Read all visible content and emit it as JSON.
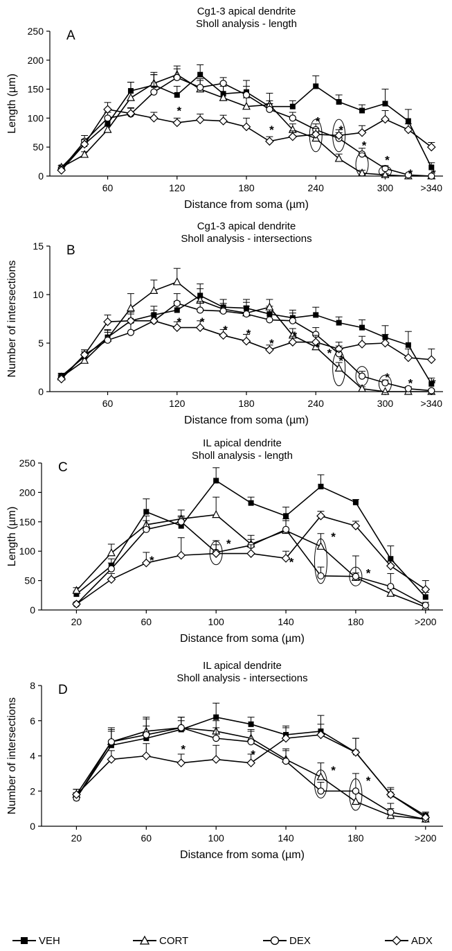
{
  "chart_data": [
    {
      "panel": "A",
      "type": "line",
      "title": "Cg1-3 apical dendrite",
      "subtitle": "Sholl analysis - length",
      "xlabel": "Distance from soma (µm)",
      "ylabel": "Length (µm)",
      "x": [
        20,
        40,
        60,
        80,
        100,
        120,
        140,
        160,
        180,
        200,
        220,
        240,
        260,
        280,
        300,
        320,
        340
      ],
      "x_ticks": [
        60,
        120,
        180,
        240,
        300,
        340
      ],
      "x_tick_labels": [
        "60",
        "120",
        "180",
        "240",
        "300",
        ">340"
      ],
      "xlim": [
        10,
        350
      ],
      "ylim": [
        0,
        250
      ],
      "y_ticks": [
        0,
        50,
        100,
        150,
        200,
        250
      ],
      "series": [
        {
          "name": "VEH",
          "values": [
            15,
            55,
            90,
            147,
            157,
            140,
            175,
            142,
            145,
            120,
            120,
            155,
            128,
            113,
            125,
            95,
            15
          ],
          "errors": [
            3,
            8,
            12,
            15,
            22,
            15,
            17,
            20,
            20,
            10,
            10,
            18,
            12,
            10,
            25,
            20,
            8
          ]
        },
        {
          "name": "CORT",
          "values": [
            15,
            37,
            80,
            135,
            160,
            175,
            150,
            135,
            120,
            123,
            80,
            65,
            30,
            5,
            2,
            0,
            0
          ],
          "errors": [
            3,
            5,
            8,
            27,
            15,
            15,
            15,
            20,
            15,
            20,
            10,
            10,
            8,
            5,
            2,
            0,
            0
          ]
        },
        {
          "name": "DEX",
          "values": [
            12,
            60,
            100,
            107,
            145,
            170,
            153,
            160,
            140,
            115,
            100,
            80,
            65,
            38,
            13,
            2,
            0
          ],
          "errors": [
            3,
            10,
            10,
            10,
            30,
            15,
            15,
            10,
            15,
            10,
            10,
            10,
            10,
            10,
            5,
            2,
            0
          ]
        },
        {
          "name": "ADX",
          "values": [
            10,
            55,
            115,
            108,
            100,
            92,
            97,
            95,
            85,
            60,
            68,
            72,
            70,
            75,
            98,
            80,
            50
          ],
          "errors": [
            3,
            8,
            12,
            10,
            10,
            8,
            10,
            10,
            15,
            8,
            10,
            10,
            10,
            12,
            15,
            10,
            8
          ]
        }
      ],
      "significance_marks": [
        {
          "x": 120,
          "y": 113
        },
        {
          "x": 200,
          "y": 80
        },
        {
          "x": 240,
          "y": 95
        },
        {
          "x": 260,
          "y": 80
        },
        {
          "x": 280,
          "y": 53
        },
        {
          "x": 300,
          "y": 28
        },
        {
          "x": 320,
          "y": 5
        },
        {
          "x": 340,
          "y": 5
        }
      ],
      "circled_points": [
        {
          "x": 240,
          "y": 70,
          "ry": 28
        },
        {
          "x": 260,
          "y": 70,
          "ry": 28
        },
        {
          "x": 280,
          "y": 20,
          "ry": 20
        },
        {
          "x": 300,
          "y": 8,
          "ry": 9
        }
      ]
    },
    {
      "panel": "B",
      "type": "line",
      "title": "Cg1-3 apical dendrite",
      "subtitle": "Sholl analysis - intersections",
      "xlabel": "Distance from soma (µm)",
      "ylabel": "Number of intersections",
      "x": [
        20,
        40,
        60,
        80,
        100,
        120,
        140,
        160,
        180,
        200,
        220,
        240,
        260,
        280,
        300,
        320,
        340
      ],
      "x_ticks": [
        60,
        120,
        180,
        240,
        300,
        340
      ],
      "x_tick_labels": [
        "60",
        "120",
        "180",
        "240",
        "300",
        ">340"
      ],
      "xlim": [
        10,
        350
      ],
      "ylim": [
        0,
        15
      ],
      "y_ticks": [
        0,
        5,
        10,
        15
      ],
      "series": [
        {
          "name": "VEH",
          "values": [
            1.6,
            3.6,
            5.6,
            7.3,
            7.9,
            8.4,
            9.9,
            8.7,
            8.6,
            8.0,
            7.6,
            7.9,
            7.1,
            6.6,
            5.6,
            4.8,
            0.8
          ],
          "errors": [
            0.3,
            0.5,
            0.8,
            0.9,
            0.9,
            0.9,
            1.2,
            0.8,
            0.9,
            0.8,
            0.8,
            0.8,
            0.6,
            0.8,
            1.2,
            1.4,
            0.6
          ]
        },
        {
          "name": "CORT",
          "values": [
            1.5,
            3.2,
            5.5,
            8.6,
            10.4,
            11.3,
            9.4,
            8.5,
            8.1,
            8.7,
            5.8,
            4.6,
            2.4,
            0.3,
            0.0,
            0.0,
            0.0
          ],
          "errors": [
            0.3,
            0.5,
            0.8,
            1.5,
            1.1,
            1.4,
            1.2,
            1.0,
            1.1,
            0.8,
            0.7,
            0.6,
            0.6,
            0.2,
            0,
            0,
            0
          ]
        },
        {
          "name": "DEX",
          "values": [
            1.4,
            3.8,
            5.3,
            6.1,
            7.3,
            9.1,
            8.4,
            8.3,
            8.0,
            7.4,
            7.3,
            5.9,
            3.9,
            1.6,
            0.9,
            0.3,
            0.1
          ],
          "errors": [
            0.3,
            0.5,
            0.8,
            1.0,
            1.1,
            1.0,
            0.9,
            0.8,
            0.8,
            0.7,
            0.8,
            0.7,
            0.8,
            0.5,
            0.3,
            0.2,
            0.1
          ]
        },
        {
          "name": "ADX",
          "values": [
            1.3,
            3.8,
            7.2,
            7.3,
            7.3,
            6.6,
            6.6,
            5.8,
            5.2,
            4.3,
            5.1,
            5.1,
            4.4,
            4.9,
            5.0,
            3.5,
            3.3
          ],
          "errors": [
            0.3,
            0.5,
            0.7,
            0.7,
            0.7,
            0.6,
            0.7,
            0.6,
            0.7,
            0.5,
            0.6,
            0.7,
            0.7,
            0.8,
            0.9,
            0.9,
            1.1
          ]
        }
      ],
      "significance_marks": [
        {
          "x": 120,
          "y": 7.2
        },
        {
          "x": 140,
          "y": 7.2
        },
        {
          "x": 160,
          "y": 6.4
        },
        {
          "x": 180,
          "y": 6.0
        },
        {
          "x": 200,
          "y": 5.0
        },
        {
          "x": 220,
          "y": 5.8
        },
        {
          "x": 240,
          "y": 4.6
        },
        {
          "x": 250,
          "y": 4.0
        },
        {
          "x": 260,
          "y": 3.2
        },
        {
          "x": 300,
          "y": 1.5
        },
        {
          "x": 320,
          "y": 0.9
        },
        {
          "x": 340,
          "y": 0.9
        }
      ],
      "circled_points": [
        {
          "x": 260,
          "y": 2.4,
          "ry": 1.8
        },
        {
          "x": 280,
          "y": 1.6,
          "ry": 1.0
        },
        {
          "x": 300,
          "y": 0.8,
          "ry": 0.9
        }
      ]
    },
    {
      "panel": "C",
      "type": "line",
      "title": "IL apical dendrite",
      "subtitle": "Sholl analysis - length",
      "xlabel": "Distance from soma (µm)",
      "ylabel": "Length (µm)",
      "x": [
        20,
        40,
        60,
        80,
        100,
        120,
        140,
        160,
        180,
        200,
        220
      ],
      "x_ticks": [
        20,
        60,
        100,
        140,
        180,
        220
      ],
      "x_tick_labels": [
        "20",
        "60",
        "100",
        "140",
        "180",
        ">200"
      ],
      "xlim": [
        0,
        230
      ],
      "ylim": [
        0,
        250
      ],
      "y_ticks": [
        0,
        50,
        100,
        150,
        200,
        250
      ],
      "series": [
        {
          "name": "VEH",
          "values": [
            27,
            75,
            167,
            143,
            220,
            182,
            160,
            210,
            183,
            87,
            22
          ],
          "errors": [
            5,
            12,
            22,
            15,
            22,
            10,
            15,
            20,
            5,
            22,
            8
          ]
        },
        {
          "name": "CORT",
          "values": [
            33,
            97,
            145,
            155,
            162,
            112,
            135,
            108,
            55,
            28,
            5
          ],
          "errors": [
            5,
            15,
            15,
            15,
            30,
            15,
            20,
            22,
            8,
            8,
            3
          ]
        },
        {
          "name": "DEX",
          "values": [
            10,
            70,
            137,
            150,
            98,
            110,
            137,
            58,
            57,
            40,
            8
          ],
          "errors": [
            3,
            10,
            15,
            10,
            20,
            10,
            15,
            15,
            35,
            22,
            5
          ]
        },
        {
          "name": "ADX",
          "values": [
            10,
            52,
            80,
            93,
            96,
            96,
            88,
            160,
            143,
            75,
            35
          ],
          "errors": [
            3,
            10,
            18,
            30,
            15,
            15,
            12,
            8,
            8,
            8,
            15
          ]
        }
      ],
      "significance_marks": [
        {
          "x": 62,
          "y": 85
        },
        {
          "x": 106,
          "y": 113
        },
        {
          "x": 142,
          "y": 82
        },
        {
          "x": 166,
          "y": 125
        },
        {
          "x": 186,
          "y": 63
        }
      ],
      "circled_points": [
        {
          "x": 100,
          "y": 97,
          "ry": 20
        },
        {
          "x": 160,
          "y": 83,
          "ry": 38
        },
        {
          "x": 180,
          "y": 57,
          "ry": 16
        }
      ]
    },
    {
      "panel": "D",
      "type": "line",
      "title": "IL apical dendrite",
      "subtitle": "Sholl analysis - intersections",
      "xlabel": "Distance from soma (µm)",
      "ylabel": "Number of intersections",
      "x": [
        20,
        40,
        60,
        80,
        100,
        120,
        140,
        160,
        180,
        200,
        220
      ],
      "x_ticks": [
        20,
        60,
        100,
        140,
        180,
        220
      ],
      "x_tick_labels": [
        "20",
        "60",
        "100",
        "140",
        "180",
        ">200"
      ],
      "xlim": [
        0,
        230
      ],
      "ylim": [
        0,
        8
      ],
      "y_ticks": [
        0,
        2,
        4,
        6,
        8
      ],
      "series": [
        {
          "name": "VEH",
          "values": [
            1.6,
            4.6,
            5.0,
            5.5,
            6.2,
            5.8,
            5.2,
            5.4,
            4.2,
            1.8,
            0.6
          ],
          "errors": [
            0.3,
            0.8,
            0.7,
            0.5,
            0.8,
            0.4,
            0.5,
            0.9,
            0.8,
            0.4,
            0.2
          ]
        },
        {
          "name": "CORT",
          "values": [
            1.8,
            4.8,
            5.4,
            5.6,
            5.4,
            5.0,
            3.8,
            2.8,
            1.4,
            0.6,
            0.4
          ],
          "errors": [
            0.3,
            0.8,
            0.8,
            0.6,
            0.6,
            0.5,
            0.6,
            0.8,
            0.5,
            0.4,
            0.2
          ]
        },
        {
          "name": "DEX",
          "values": [
            1.6,
            4.8,
            5.2,
            5.6,
            5.0,
            4.8,
            3.7,
            2.0,
            2.0,
            0.8,
            0.4
          ],
          "errors": [
            0.3,
            0.7,
            0.9,
            0.6,
            0.6,
            0.6,
            0.6,
            0.5,
            1.0,
            0.5,
            0.2
          ]
        },
        {
          "name": "ADX",
          "values": [
            1.8,
            3.8,
            4.0,
            3.6,
            3.8,
            3.6,
            5.0,
            5.2,
            4.2,
            1.8,
            0.5
          ],
          "errors": [
            0.3,
            0.5,
            0.7,
            0.5,
            0.8,
            0.5,
            0.6,
            0.6,
            0.8,
            0.3,
            0.3
          ]
        }
      ],
      "significance_marks": [
        {
          "x": 80,
          "y": 4.4
        },
        {
          "x": 120,
          "y": 4.1
        },
        {
          "x": 166,
          "y": 3.2
        },
        {
          "x": 186,
          "y": 2.6
        }
      ],
      "circled_points": [
        {
          "x": 160,
          "y": 2.4,
          "ry": 0.8
        },
        {
          "x": 180,
          "y": 1.8,
          "ry": 0.9
        }
      ]
    }
  ],
  "legend": {
    "items": [
      {
        "label": "VEH",
        "marker": "square-filled"
      },
      {
        "label": "CORT",
        "marker": "triangle-open"
      },
      {
        "label": "DEX",
        "marker": "circle-open"
      },
      {
        "label": "ADX",
        "marker": "diamond-open"
      }
    ]
  },
  "significance_symbol": "*",
  "colors": {
    "line": "#000000",
    "background": "#ffffff"
  }
}
